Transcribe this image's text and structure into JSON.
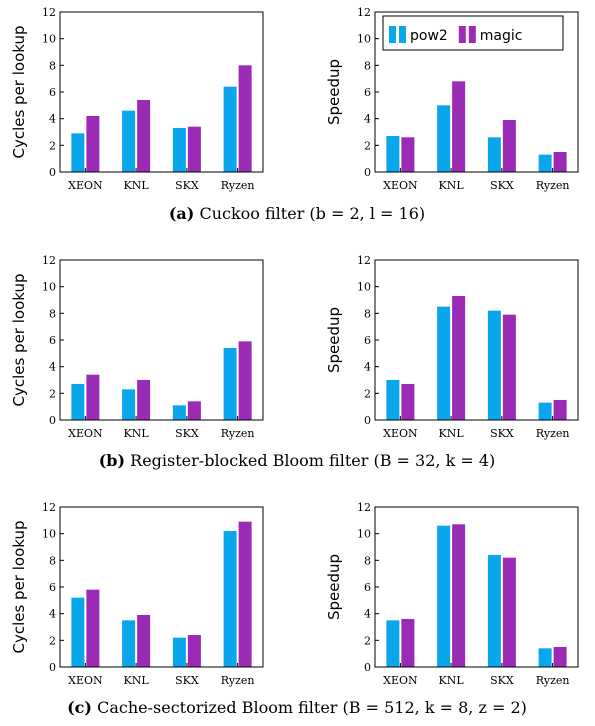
{
  "legend": {
    "series": [
      {
        "name": "pow2",
        "color": "#0aa6ec"
      },
      {
        "name": "magic",
        "color": "#9b2bb5"
      }
    ]
  },
  "chart_data": [
    {
      "type": "bar",
      "categories": [
        "XEON",
        "KNL",
        "SKX",
        "Ryzen"
      ],
      "ylabel": "Cycles per lookup",
      "ylim": [
        0,
        12
      ],
      "yticks": [
        0,
        2,
        4,
        6,
        8,
        10,
        12
      ],
      "series": [
        {
          "name": "pow2",
          "values": [
            2.9,
            4.6,
            3.3,
            6.4
          ]
        },
        {
          "name": "magic",
          "values": [
            4.2,
            5.4,
            3.4,
            8.0
          ]
        }
      ]
    },
    {
      "type": "bar",
      "categories": [
        "XEON",
        "KNL",
        "SKX",
        "Ryzen"
      ],
      "ylabel": "Speedup",
      "ylim": [
        0,
        12
      ],
      "yticks": [
        0,
        2,
        4,
        6,
        8,
        10,
        12
      ],
      "legend": "top-right",
      "series": [
        {
          "name": "pow2",
          "values": [
            2.7,
            5.0,
            2.6,
            1.3
          ]
        },
        {
          "name": "magic",
          "values": [
            2.6,
            6.8,
            3.9,
            1.5
          ]
        }
      ]
    },
    {
      "type": "bar",
      "categories": [
        "XEON",
        "KNL",
        "SKX",
        "Ryzen"
      ],
      "ylabel": "Cycles per lookup",
      "ylim": [
        0,
        12
      ],
      "yticks": [
        0,
        2,
        4,
        6,
        8,
        10,
        12
      ],
      "series": [
        {
          "name": "pow2",
          "values": [
            2.7,
            2.3,
            1.1,
            5.4
          ]
        },
        {
          "name": "magic",
          "values": [
            3.4,
            3.0,
            1.4,
            5.9
          ]
        }
      ]
    },
    {
      "type": "bar",
      "categories": [
        "XEON",
        "KNL",
        "SKX",
        "Ryzen"
      ],
      "ylabel": "Speedup",
      "ylim": [
        0,
        12
      ],
      "yticks": [
        0,
        2,
        4,
        6,
        8,
        10,
        12
      ],
      "series": [
        {
          "name": "pow2",
          "values": [
            3.0,
            8.5,
            8.2,
            1.3
          ]
        },
        {
          "name": "magic",
          "values": [
            2.7,
            9.3,
            7.9,
            1.5
          ]
        }
      ]
    },
    {
      "type": "bar",
      "categories": [
        "XEON",
        "KNL",
        "SKX",
        "Ryzen"
      ],
      "ylabel": "Cycles per lookup",
      "ylim": [
        0,
        12
      ],
      "yticks": [
        0,
        2,
        4,
        6,
        8,
        10,
        12
      ],
      "series": [
        {
          "name": "pow2",
          "values": [
            5.2,
            3.5,
            2.2,
            10.2
          ]
        },
        {
          "name": "magic",
          "values": [
            5.8,
            3.9,
            2.4,
            10.9
          ]
        }
      ]
    },
    {
      "type": "bar",
      "categories": [
        "XEON",
        "KNL",
        "SKX",
        "Ryzen"
      ],
      "ylabel": "Speedup",
      "ylim": [
        0,
        12
      ],
      "yticks": [
        0,
        2,
        4,
        6,
        8,
        10,
        12
      ],
      "series": [
        {
          "name": "pow2",
          "values": [
            3.5,
            10.6,
            8.4,
            1.4
          ]
        },
        {
          "name": "magic",
          "values": [
            3.6,
            10.7,
            8.2,
            1.5
          ]
        }
      ]
    }
  ],
  "captions": [
    {
      "label": "(a)",
      "text": "Cuckoo filter (b = 2, l = 16)"
    },
    {
      "label": "(b)",
      "text": "Register-blocked Bloom filter (B = 32, k = 4)"
    },
    {
      "label": "(c)",
      "text": "Cache-sectorized Bloom filter (B = 512, k = 8, z = 2)"
    }
  ]
}
